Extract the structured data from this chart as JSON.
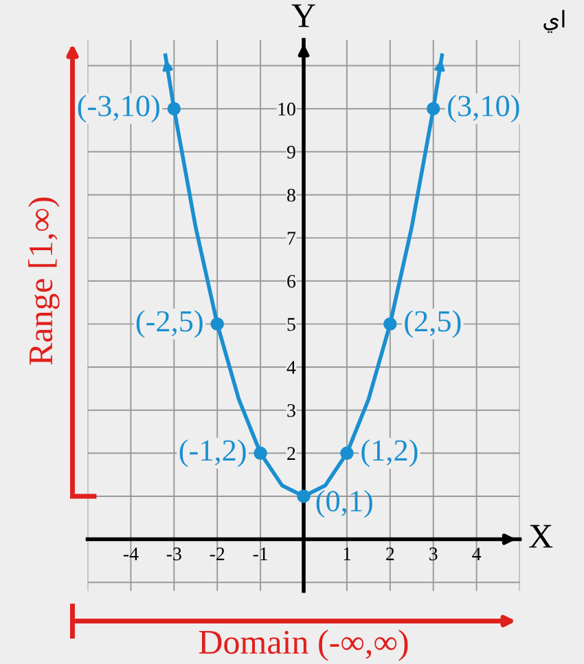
{
  "chart_data": {
    "type": "line",
    "xlabel": "X",
    "ylabel": "Y",
    "series": [
      {
        "color": "#1a8fd0",
        "marker": "none",
        "x": [
          -3.2,
          -3,
          -2.5,
          -2,
          -1.5,
          -1,
          -0.5,
          0,
          0.5,
          1,
          1.5,
          2,
          2.5,
          3,
          3.2
        ],
        "values": [
          11.24,
          10,
          7.25,
          5,
          3.25,
          2,
          1.25,
          1,
          1.25,
          2,
          3.25,
          5,
          7.25,
          10,
          11.24
        ]
      },
      {
        "type": "scatter",
        "color": "#1a8fd0",
        "marker": "circle",
        "x": [
          -3,
          -2,
          -1,
          0,
          1,
          2,
          3
        ],
        "values": [
          10,
          5,
          2,
          1,
          2,
          5,
          10
        ]
      }
    ],
    "xlim": [
      -5,
      5
    ],
    "ylim": [
      -1.2,
      11.6
    ],
    "xticks": [
      -4,
      -3,
      -2,
      -1,
      1,
      2,
      3,
      4
    ],
    "yticks": [
      2,
      3,
      4,
      5,
      6,
      7,
      8,
      9,
      10
    ],
    "grid": true,
    "annotations": [
      "Range [1,∞)",
      "Domain (-∞,∞)",
      "يا",
      {
        "text": "(-3,10)",
        "x": -3,
        "y": 10
      },
      {
        "text": "(-2,5)",
        "x": -2,
        "y": 5
      },
      {
        "text": "(-1,2)",
        "x": -1,
        "y": 2
      },
      {
        "text": "(0,1)",
        "x": 0,
        "y": 1
      },
      {
        "text": "(1,2)",
        "x": 1,
        "y": 2
      },
      {
        "text": "(2,5)",
        "x": 2,
        "y": 5
      },
      {
        "text": "(3,10)",
        "x": 3,
        "y": 10
      }
    ]
  }
}
